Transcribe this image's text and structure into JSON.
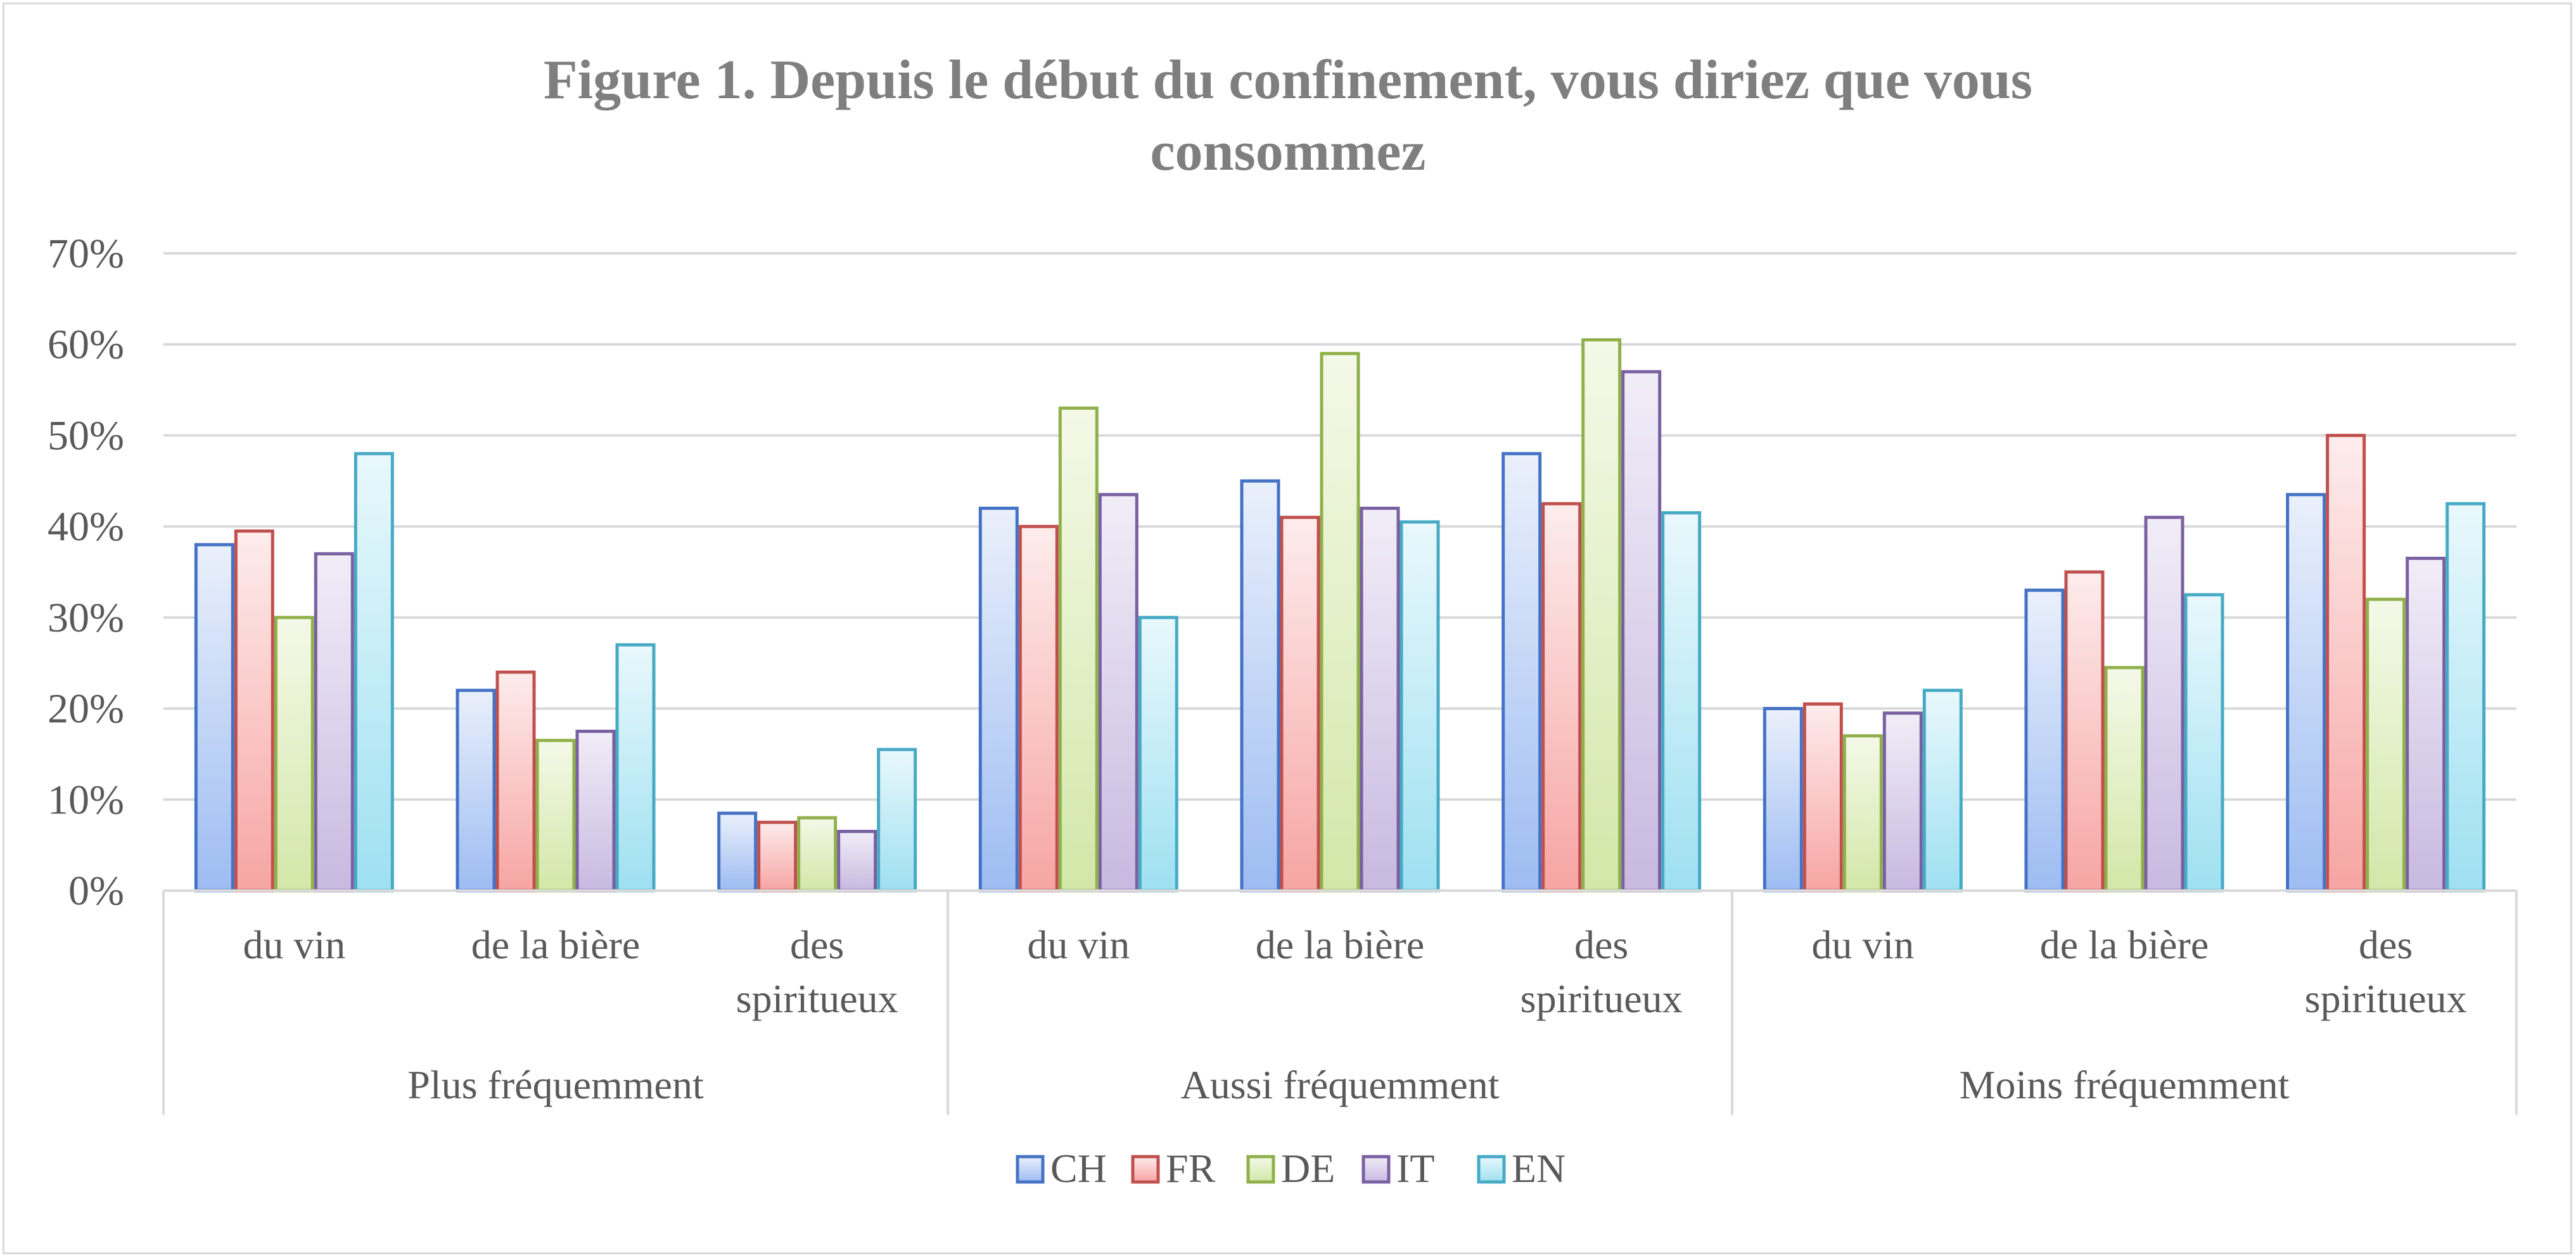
{
  "chart_data": {
    "type": "bar",
    "title_lines": [
      "Figure 1. Depuis le début du confinement, vous diriez que vous",
      "consommez"
    ],
    "y_ticks": [
      "0%",
      "10%",
      "20%",
      "30%",
      "40%",
      "50%",
      "60%",
      "70%"
    ],
    "ylim": [
      0,
      70
    ],
    "grid": true,
    "legend_position": "bottom",
    "groups": [
      {
        "label": "Plus fréquemment",
        "categories": [
          {
            "label_lines": [
              "du vin"
            ]
          },
          {
            "label_lines": [
              "de la bière"
            ]
          },
          {
            "label_lines": [
              "des",
              "spiritueux"
            ]
          }
        ]
      },
      {
        "label": "Aussi fréquemment",
        "categories": [
          {
            "label_lines": [
              "du vin"
            ]
          },
          {
            "label_lines": [
              "de la bière"
            ]
          },
          {
            "label_lines": [
              "des",
              "spiritueux"
            ]
          }
        ]
      },
      {
        "label": "Moins fréquemment",
        "categories": [
          {
            "label_lines": [
              "du vin"
            ]
          },
          {
            "label_lines": [
              "de la bière"
            ]
          },
          {
            "label_lines": [
              "des",
              "spiritueux"
            ]
          }
        ]
      }
    ],
    "series": [
      {
        "name": "CH",
        "color": "#4472c4",
        "fill_top": "#eaf0fb",
        "fill_bottom": "#9dbcf2",
        "values": [
          38,
          22,
          8.5,
          42,
          45,
          48,
          20,
          33,
          43.5
        ]
      },
      {
        "name": "FR",
        "color": "#c0504d",
        "fill_top": "#fdecec",
        "fill_bottom": "#f6a5a3",
        "values": [
          39.5,
          24,
          7.5,
          40,
          41,
          42.5,
          20.5,
          35,
          50
        ]
      },
      {
        "name": "DE",
        "color": "#8fb04a",
        "fill_top": "#f4f9e8",
        "fill_bottom": "#d2e7a8",
        "values": [
          30,
          16.5,
          8,
          53,
          59,
          60.5,
          17,
          24.5,
          32
        ]
      },
      {
        "name": "IT",
        "color": "#7960a0",
        "fill_top": "#f1edf7",
        "fill_bottom": "#c8b9e0",
        "values": [
          37,
          17.5,
          6.5,
          43.5,
          42,
          57,
          19.5,
          41,
          36.5
        ]
      },
      {
        "name": "EN",
        "color": "#46aac5",
        "fill_top": "#e9f8fc",
        "fill_bottom": "#9ee0f1",
        "values": [
          48,
          27,
          15.5,
          30,
          40.5,
          41.5,
          22,
          32.5,
          42.5
        ]
      }
    ]
  }
}
